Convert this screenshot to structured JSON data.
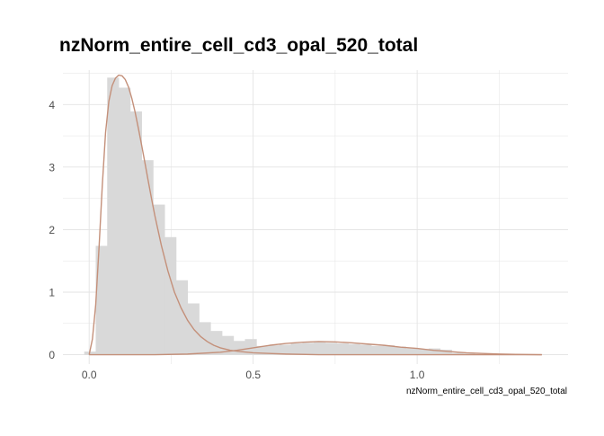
{
  "chart_data": {
    "type": "bar",
    "title": "nzNorm_entire_cell_cd3_opal_520_total",
    "xlabel": "nzNorm_entire_cell_cd3_opal_520_total",
    "ylabel": "",
    "xlim": [
      -0.08,
      1.46
    ],
    "ylim": [
      -0.15,
      4.55
    ],
    "x_ticks": [
      0.0,
      0.5,
      1.0
    ],
    "x_tick_labels": [
      "0.0",
      "0.5",
      "1.0"
    ],
    "y_ticks": [
      0,
      1,
      2,
      3,
      4
    ],
    "y_tick_labels": [
      "0",
      "1",
      "2",
      "3",
      "4"
    ],
    "grid": true,
    "legend": "none",
    "colors": {
      "bars": "#d9d9d9",
      "curve": "#c4907a",
      "grid": "#e3e3e3"
    },
    "histogram": {
      "bin_width": 0.035,
      "bins": [
        {
          "x0": -0.015,
          "value": 0.05
        },
        {
          "x0": 0.02,
          "value": 1.74
        },
        {
          "x0": 0.055,
          "value": 4.43
        },
        {
          "x0": 0.09,
          "value": 4.27
        },
        {
          "x0": 0.125,
          "value": 3.89
        },
        {
          "x0": 0.16,
          "value": 3.11
        },
        {
          "x0": 0.195,
          "value": 2.4
        },
        {
          "x0": 0.23,
          "value": 1.88
        },
        {
          "x0": 0.265,
          "value": 1.19
        },
        {
          "x0": 0.3,
          "value": 0.82
        },
        {
          "x0": 0.335,
          "value": 0.52
        },
        {
          "x0": 0.37,
          "value": 0.38
        },
        {
          "x0": 0.405,
          "value": 0.3
        },
        {
          "x0": 0.44,
          "value": 0.22
        },
        {
          "x0": 0.475,
          "value": 0.25
        },
        {
          "x0": 0.51,
          "value": 0.14
        },
        {
          "x0": 0.545,
          "value": 0.15
        },
        {
          "x0": 0.58,
          "value": 0.16
        },
        {
          "x0": 0.615,
          "value": 0.18
        },
        {
          "x0": 0.65,
          "value": 0.19
        },
        {
          "x0": 0.685,
          "value": 0.2
        },
        {
          "x0": 0.72,
          "value": 0.19
        },
        {
          "x0": 0.755,
          "value": 0.18
        },
        {
          "x0": 0.79,
          "value": 0.17
        },
        {
          "x0": 0.825,
          "value": 0.16
        },
        {
          "x0": 0.86,
          "value": 0.14
        },
        {
          "x0": 0.895,
          "value": 0.15
        },
        {
          "x0": 0.93,
          "value": 0.13
        },
        {
          "x0": 0.965,
          "value": 0.1
        },
        {
          "x0": 1.0,
          "value": 0.09
        },
        {
          "x0": 1.035,
          "value": 0.1
        },
        {
          "x0": 1.07,
          "value": 0.08
        },
        {
          "x0": 1.105,
          "value": 0.03
        },
        {
          "x0": 1.14,
          "value": 0.02
        },
        {
          "x0": 1.175,
          "value": 0.01
        }
      ]
    },
    "series": [
      {
        "x": [
          0.0,
          0.01,
          0.02,
          0.03,
          0.04,
          0.05,
          0.06,
          0.07,
          0.08,
          0.09,
          0.1,
          0.11,
          0.12,
          0.13,
          0.14,
          0.15,
          0.16,
          0.17,
          0.18,
          0.19,
          0.2,
          0.22,
          0.24,
          0.26,
          0.28,
          0.3,
          0.32,
          0.34,
          0.36,
          0.38,
          0.4,
          0.43,
          0.46,
          0.5,
          0.55,
          0.6,
          0.7,
          0.8,
          1.0,
          1.2,
          1.38
        ],
        "y": [
          0.0,
          0.25,
          0.8,
          1.7,
          2.7,
          3.55,
          4.05,
          4.3,
          4.42,
          4.47,
          4.46,
          4.4,
          4.28,
          4.1,
          3.88,
          3.62,
          3.35,
          3.07,
          2.78,
          2.5,
          2.23,
          1.75,
          1.34,
          1.0,
          0.75,
          0.55,
          0.4,
          0.29,
          0.21,
          0.15,
          0.11,
          0.07,
          0.05,
          0.03,
          0.02,
          0.01,
          0.0,
          0.0,
          0.0,
          0.0,
          0.0
        ]
      },
      {
        "x": [
          0.0,
          0.2,
          0.3,
          0.4,
          0.45,
          0.5,
          0.55,
          0.6,
          0.65,
          0.7,
          0.75,
          0.8,
          0.85,
          0.9,
          0.95,
          1.0,
          1.05,
          1.1,
          1.15,
          1.2,
          1.25,
          1.3,
          1.38
        ],
        "y": [
          0.0,
          0.0,
          0.01,
          0.04,
          0.07,
          0.11,
          0.15,
          0.18,
          0.2,
          0.21,
          0.205,
          0.19,
          0.17,
          0.15,
          0.12,
          0.1,
          0.07,
          0.05,
          0.03,
          0.02,
          0.01,
          0.005,
          0.0
        ]
      }
    ]
  }
}
